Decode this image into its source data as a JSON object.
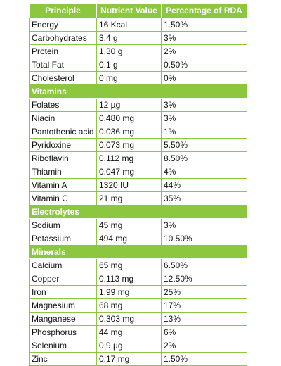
{
  "table": {
    "headers": [
      "Principle",
      "Nutrient Value",
      "Percentage of RDA"
    ],
    "groups": [
      {
        "title": "",
        "rows": [
          [
            "Energy",
            "16 Kcal",
            "1.50%"
          ],
          [
            "Carbohydrates",
            "3.4 g",
            "3%"
          ],
          [
            "Protein",
            "1.30 g",
            "2%"
          ],
          [
            "Total Fat",
            "0.1 g",
            "0.50%"
          ],
          [
            "Cholesterol",
            "0 mg",
            "0%"
          ]
        ]
      },
      {
        "title": "Vitamins",
        "rows": [
          [
            "Folates",
            "12 µg",
            "3%"
          ],
          [
            "Niacin",
            "0.480 mg",
            "3%"
          ],
          [
            "Pantothenic acid",
            "0.036 mg",
            "1%"
          ],
          [
            "Pyridoxine",
            "0.073 mg",
            "5.50%"
          ],
          [
            "Riboflavin",
            "0.112 mg",
            "8.50%"
          ],
          [
            "Thiamin",
            "0.047 mg",
            "4%"
          ],
          [
            "Vitamin A",
            "1320 IU",
            "44%"
          ],
          [
            "Vitamin C",
            "21 mg",
            "35%"
          ]
        ]
      },
      {
        "title": "Electrolytes",
        "rows": [
          [
            "Sodium",
            "45 mg",
            "3%"
          ],
          [
            "Potassium",
            "494 mg",
            "10.50%"
          ]
        ]
      },
      {
        "title": "Minerals",
        "rows": [
          [
            "Calcium",
            "65 mg",
            "6.50%"
          ],
          [
            "Copper",
            "0.113 mg",
            "12.50%"
          ],
          [
            "Iron",
            "1.99 mg",
            "25%"
          ],
          [
            "Magnesium",
            "68 mg",
            "17%"
          ],
          [
            "Manganese",
            "0.303 mg",
            "13%"
          ],
          [
            "Phosphorus",
            "44 mg",
            "6%"
          ],
          [
            "Selenium",
            "0.9 µg",
            "2%"
          ],
          [
            "Zinc",
            "0.17 mg",
            "1.50%"
          ]
        ]
      }
    ]
  },
  "colors": {
    "accent": "#8dc63f",
    "header_text": "#ffffff",
    "cell_text": "#111111"
  }
}
